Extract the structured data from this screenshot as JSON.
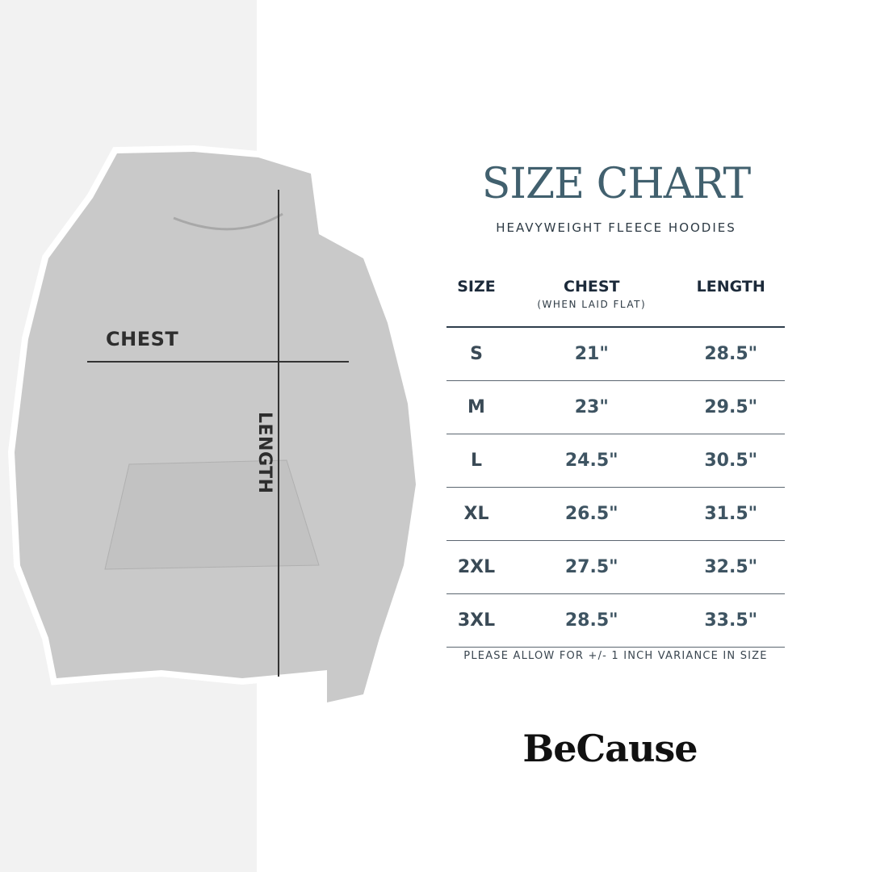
{
  "colors": {
    "title": "#41606e",
    "header": "#1c2a3a",
    "values": "#3e5462",
    "hoodie": "#c9c9c9",
    "left_panel": "#f2f2f2"
  },
  "image_labels": {
    "chest": "CHEST",
    "length": "LENGTH"
  },
  "title": "SIZE CHART",
  "subtitle": "HEAVYWEIGHT FLEECE HOODIES",
  "table": {
    "headers": [
      {
        "label": "SIZE",
        "sub": ""
      },
      {
        "label": "CHEST",
        "sub": "(WHEN LAID FLAT)"
      },
      {
        "label": "LENGTH",
        "sub": ""
      }
    ],
    "rows": [
      [
        "S",
        "21\"",
        "28.5\""
      ],
      [
        "M",
        "23\"",
        "29.5\""
      ],
      [
        "L",
        "24.5\"",
        "30.5\""
      ],
      [
        "XL",
        "26.5\"",
        "31.5\""
      ],
      [
        "2XL",
        "27.5\"",
        "32.5\""
      ],
      [
        "3XL",
        "28.5\"",
        "33.5\""
      ]
    ]
  },
  "note": "PLEASE ALLOW FOR +/- 1 INCH VARIANCE IN SIZE",
  "logo": "BeCause"
}
